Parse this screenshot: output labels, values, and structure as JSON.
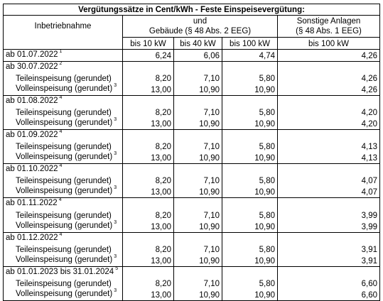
{
  "title": "Vergütungssätze in Cent/kWh - Feste Einspeisevergütung:",
  "header": {
    "col_commissioning": "Inbetriebnahme",
    "buildings_line1": "und",
    "buildings_line2": "Gebäude (§ 48 Abs. 2 EEG)",
    "other_line1": "Sonstige Anlagen",
    "other_line2": "(§ 48 Abs. 1 EEG)",
    "sub_10": "bis 10 kW",
    "sub_40": "bis 40 kW",
    "sub_100": "bis 100 kW",
    "sub_other_100": "bis 100 kW"
  },
  "first_row": {
    "label": "ab 01.07.2022",
    "note": "1",
    "v10": "6,24",
    "v40": "6,06",
    "v100": "4,74",
    "vother": "4,26"
  },
  "partial_label": "Teileinspeisung (gerundet)",
  "full_label": "Volleinspeisung (gerundet)",
  "full_note": "3",
  "groups": [
    {
      "label": "ab 30.07.2022",
      "note": "2",
      "partial": [
        "8,20",
        "7,10",
        "5,80",
        "4,26"
      ],
      "full": [
        "13,00",
        "10,90",
        "10,90",
        "4,26"
      ]
    },
    {
      "label": "ab 01.08.2022",
      "note": "4",
      "partial": [
        "8,20",
        "7,10",
        "5,80",
        "4,20"
      ],
      "full": [
        "13,00",
        "10,90",
        "10,90",
        "4,20"
      ]
    },
    {
      "label": "ab 01.09.2022",
      "note": "4",
      "partial": [
        "8,20",
        "7,10",
        "5,80",
        "4,13"
      ],
      "full": [
        "13,00",
        "10,90",
        "10,90",
        "4,13"
      ]
    },
    {
      "label": "ab 01.10.2022",
      "note": "4",
      "partial": [
        "8,20",
        "7,10",
        "5,80",
        "4,07"
      ],
      "full": [
        "13,00",
        "10,90",
        "10,90",
        "4,07"
      ]
    },
    {
      "label": "ab 01.11.2022",
      "note": "4",
      "partial": [
        "8,20",
        "7,10",
        "5,80",
        "3,99"
      ],
      "full": [
        "13,00",
        "10,90",
        "10,90",
        "3,99"
      ]
    },
    {
      "label": "ab 01.12.2022",
      "note": "4",
      "partial": [
        "8,20",
        "7,10",
        "5,80",
        "3,91"
      ],
      "full": [
        "13,00",
        "10,90",
        "10,90",
        "3,91"
      ]
    },
    {
      "label": "ab 01.01.2023 bis 31.01.2024",
      "note": "5",
      "partial": [
        "8,20",
        "7,10",
        "5,80",
        "6,60"
      ],
      "full": [
        "13,00",
        "10,90",
        "10,90",
        "6,60"
      ]
    }
  ]
}
